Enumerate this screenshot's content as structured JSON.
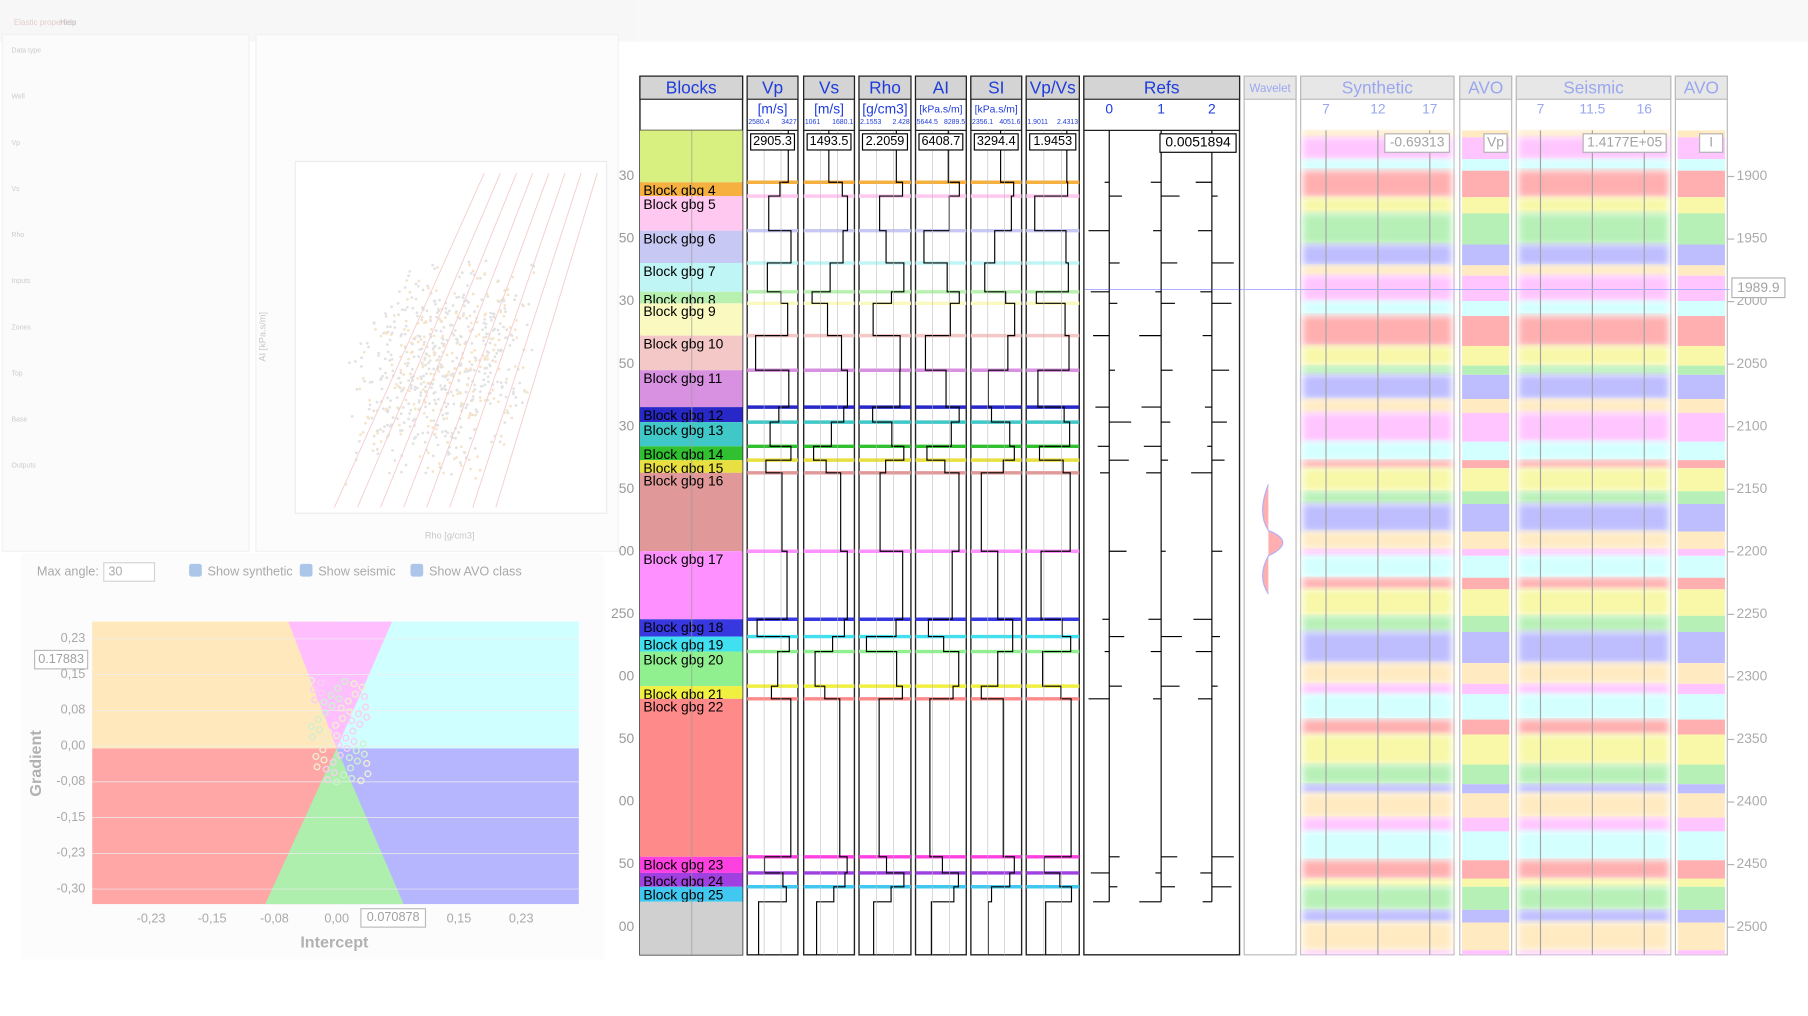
{
  "crossplot_window": {
    "title": "Elastic properties",
    "menu": "Help",
    "labels": [
      "Data type",
      "Well",
      "Vp",
      "Vs",
      "Rho",
      "Inputs",
      "Zones",
      "Top",
      "Base",
      "Outputs"
    ],
    "x_axis": "Rho [g/cm3]",
    "y_axis": "AI [kPa.s/m]"
  },
  "avo_panel": {
    "max_angle_label": "Max angle:",
    "max_angle": "30",
    "checkboxes": [
      "Show synthetic",
      "Show seismic",
      "Show AVO class"
    ],
    "y_axis": "Gradient",
    "x_axis": "Intercept",
    "y_ticks": [
      "0,23",
      "0,15",
      "0,08",
      "0,00",
      "-0,08",
      "-0,15",
      "-0,23",
      "-0,30"
    ],
    "x_ticks": [
      "-0,23",
      "-0,15",
      "-0,08",
      "0,00",
      "0,15",
      "0,23"
    ],
    "y_readout": "0.17883",
    "x_readout": "0.070878"
  },
  "well_panel": {
    "tracks": [
      {
        "name": "Blocks"
      },
      {
        "name": "Vp",
        "unit": "[m/s]",
        "min": "2580.4",
        "max": "3427",
        "readout": "2905.3"
      },
      {
        "name": "Vs",
        "unit": "[m/s]",
        "min": "1061",
        "max": "1680.1",
        "readout": "1493.5"
      },
      {
        "name": "Rho",
        "unit": "[g/cm3]",
        "min": "2.1553",
        "max": "2.428",
        "readout": "2.2059"
      },
      {
        "name": "AI",
        "unit": "[kPa.s/m]",
        "min": "5644.5",
        "max": "8289.5",
        "readout": "6408.7"
      },
      {
        "name": "SI",
        "unit": "[kPa.s/m]",
        "min": "2356.1",
        "max": "4051.6",
        "readout": "3294.4"
      },
      {
        "name": "Vp/Vs",
        "unit": "",
        "min": "1.9011",
        "max": "2.4313",
        "readout": "1.9453"
      }
    ],
    "refs": {
      "name": "Refs",
      "ticks": [
        "0",
        "1",
        "2"
      ],
      "readout": "0.0051894"
    },
    "wavelet": "Wavelet",
    "synthetic": {
      "name": "Synthetic",
      "ticks": [
        "7",
        "12",
        "17"
      ],
      "readout": "-0.69313"
    },
    "avo1": {
      "name": "AVO",
      "readout": "Vp"
    },
    "seismic": {
      "name": "Seismic",
      "ticks": [
        "7",
        "11.5",
        "16"
      ],
      "readout": "1.4177E+05"
    },
    "avo2": {
      "name": "AVO",
      "readout": "I"
    },
    "blocks": [
      {
        "name": "Block gbg 4",
        "color": "#f5b040"
      },
      {
        "name": "Block gbg 5",
        "color": "#ffc8f0"
      },
      {
        "name": "Block gbg 6",
        "color": "#c8c8f5"
      },
      {
        "name": "Block gbg 7",
        "color": "#c0f5f5"
      },
      {
        "name": "Block gbg 8",
        "color": "#b8f0b0"
      },
      {
        "name": "Block gbg 9",
        "color": "#fafac0"
      },
      {
        "name": "Block gbg 10",
        "color": "#f5c8c8"
      },
      {
        "name": "Block gbg 11",
        "color": "#d890e0"
      },
      {
        "name": "Block gbg 12",
        "color": "#2828c8"
      },
      {
        "name": "Block gbg 13",
        "color": "#40c8c8"
      },
      {
        "name": "Block gbg 14",
        "color": "#30c030"
      },
      {
        "name": "Block gbg 15",
        "color": "#e8e040"
      },
      {
        "name": "Block gbg 16",
        "color": "#e09898"
      },
      {
        "name": "Block gbg 17",
        "color": "#ff90ff"
      },
      {
        "name": "Block gbg 18",
        "color": "#3838e0"
      },
      {
        "name": "Block gbg 19",
        "color": "#40e0f0"
      },
      {
        "name": "Block gbg 20",
        "color": "#90f090"
      },
      {
        "name": "Block gbg 21",
        "color": "#f0f040"
      },
      {
        "name": "Block gbg 22",
        "color": "#ff8a8a"
      },
      {
        "name": "Block gbg 23",
        "color": "#ff40e0"
      },
      {
        "name": "Block gbg 24",
        "color": "#a040e0"
      },
      {
        "name": "Block gbg 25",
        "color": "#40c8f0"
      }
    ],
    "depth_ticks": [
      1900,
      1950,
      2000,
      2050,
      2100,
      2150,
      2200,
      2250,
      2300,
      2350,
      2400,
      2450,
      2500
    ],
    "depth_readout": "1989.9",
    "time_ticks": [
      "30",
      "50",
      "30",
      "50",
      "30",
      "50",
      "00",
      "250",
      "00",
      "50",
      "00",
      "50",
      "00"
    ]
  }
}
